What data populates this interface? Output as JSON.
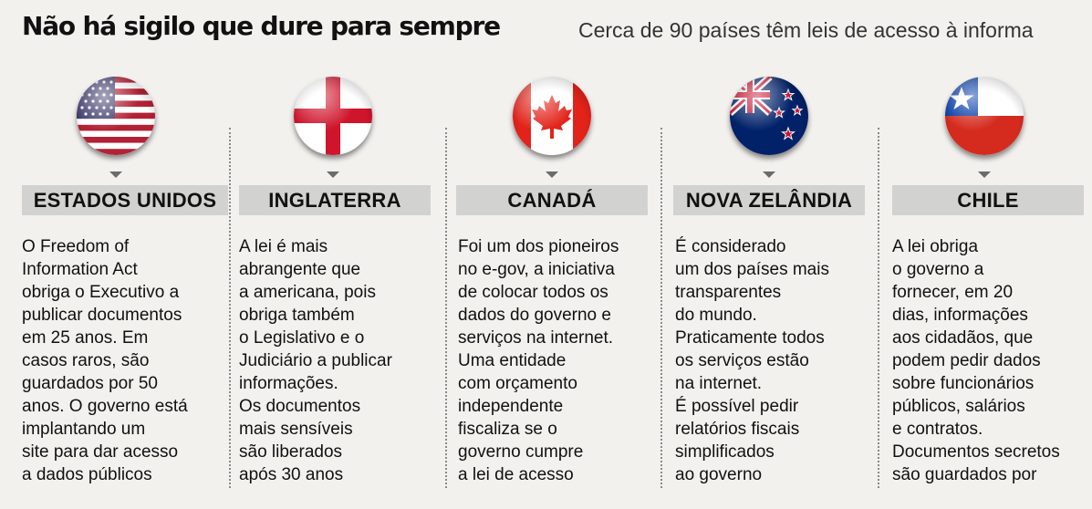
{
  "header": {
    "title": "Não há sigilo que dure para sempre",
    "subtitle": "Cerca de 90 países têm leis de acesso à informa"
  },
  "countries": [
    {
      "name": "ESTADOS UNIDOS",
      "flag_icon": "usa-flag-icon",
      "lines": [
        "O Freedom of",
        "Information Act",
        "obriga o Executivo a",
        "publicar documentos",
        "em 25 anos. Em",
        "casos raros, são",
        "guardados por 50",
        "anos. O governo está",
        "implantando um",
        "site para dar acesso",
        "a dados públicos"
      ]
    },
    {
      "name": "INGLATERRA",
      "flag_icon": "england-flag-icon",
      "lines": [
        "A lei é mais",
        "abrangente que",
        "a americana, pois",
        "obriga também",
        "o Legislativo e o",
        "Judiciário a publicar",
        "informações.",
        "Os documentos",
        "mais sensíveis",
        "são liberados",
        "após 30 anos"
      ]
    },
    {
      "name": "CANADÁ",
      "flag_icon": "canada-flag-icon",
      "lines": [
        "Foi um dos pioneiros",
        "no e-gov, a iniciativa",
        "de colocar todos os",
        "dados do governo e",
        "serviços na internet.",
        "Uma entidade",
        "com orçamento",
        "independente",
        "fiscaliza se o",
        "governo cumpre",
        "a lei de acesso"
      ]
    },
    {
      "name": "NOVA ZELÂNDIA",
      "flag_icon": "new-zealand-flag-icon",
      "lines": [
        "É considerado",
        "um dos países mais",
        "transparentes",
        "do mundo.",
        "Praticamente todos",
        "os serviços estão",
        "na internet.",
        "É possível pedir",
        "relatórios fiscais",
        "simplificados",
        "ao governo"
      ]
    },
    {
      "name": "CHILE",
      "flag_icon": "chile-flag-icon",
      "lines": [
        "A lei obriga",
        "o governo a",
        "fornecer, em 20",
        "dias, informações",
        "aos cidadãos, que",
        "podem pedir dados",
        "sobre funcionários",
        "públicos, salários",
        "e contratos.",
        "Documentos secretos",
        "são guardados por"
      ]
    }
  ]
}
